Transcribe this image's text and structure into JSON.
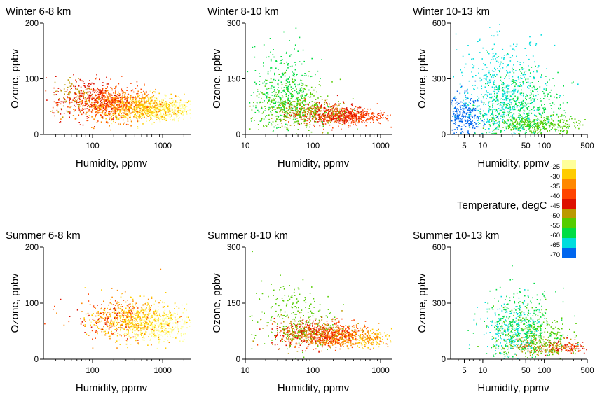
{
  "legend": {
    "title": "Temperature, degC",
    "labels": [
      "-25",
      "-30",
      "-35",
      "-40",
      "-45",
      "-50",
      "-55",
      "-60",
      "-65",
      "-70"
    ],
    "colors": [
      "#ffff99",
      "#ffcc00",
      "#ff8800",
      "#ff4400",
      "#dd1100",
      "#bb9900",
      "#55cc00",
      "#00dd44",
      "#00dddd",
      "#0066ee"
    ]
  },
  "chart_data": [
    {
      "type": "scatter",
      "title": "Winter 6-8 km",
      "xlabel": "Humidity, ppmv",
      "ylabel": "Ozone, ppbv",
      "xscale": "log",
      "xlim": [
        20,
        2500
      ],
      "ylim": [
        0,
        200
      ],
      "xticks": [
        100,
        1000
      ],
      "xticklabels": [
        "100",
        "1000"
      ],
      "yticks": [
        0,
        100,
        200
      ],
      "yticklabels": [
        "0",
        "100",
        "200"
      ],
      "series": [
        {
          "temperature": "-25",
          "center_x": 900,
          "center_y": 45,
          "spread_x": 0.3,
          "spread_y": 10,
          "count": 450
        },
        {
          "temperature": "-30",
          "center_x": 500,
          "center_y": 48,
          "spread_x": 0.3,
          "spread_y": 12,
          "count": 420
        },
        {
          "temperature": "-35",
          "center_x": 250,
          "center_y": 52,
          "spread_x": 0.3,
          "spread_y": 14,
          "count": 380
        },
        {
          "temperature": "-40",
          "center_x": 150,
          "center_y": 58,
          "spread_x": 0.28,
          "spread_y": 16,
          "count": 330
        },
        {
          "temperature": "-45",
          "center_x": 90,
          "center_y": 65,
          "spread_x": 0.25,
          "spread_y": 20,
          "count": 200
        },
        {
          "temperature": "-50",
          "center_x": 60,
          "center_y": 70,
          "spread_x": 0.2,
          "spread_y": 18,
          "count": 80
        }
      ]
    },
    {
      "type": "scatter",
      "title": "Winter 8-10 km",
      "xlabel": "Humidity, ppmv",
      "ylabel": "Ozone, ppbv",
      "xscale": "log",
      "xlim": [
        10,
        1500
      ],
      "ylim": [
        0,
        300
      ],
      "xticks": [
        10,
        100,
        1000
      ],
      "xticklabels": [
        "10",
        "100",
        "1000"
      ],
      "yticks": [
        0,
        150,
        300
      ],
      "yticklabels": [
        "0",
        "150",
        "300"
      ],
      "series": [
        {
          "temperature": "-40",
          "center_x": 300,
          "center_y": 50,
          "spread_x": 0.3,
          "spread_y": 12,
          "count": 380
        },
        {
          "temperature": "-45",
          "center_x": 180,
          "center_y": 55,
          "spread_x": 0.3,
          "spread_y": 14,
          "count": 280
        },
        {
          "temperature": "-50",
          "center_x": 90,
          "center_y": 60,
          "spread_x": 0.3,
          "spread_y": 18,
          "count": 220
        },
        {
          "temperature": "-55",
          "center_x": 50,
          "center_y": 75,
          "spread_x": 0.3,
          "spread_y": 35,
          "count": 360
        },
        {
          "temperature": "-60",
          "center_x": 35,
          "center_y": 120,
          "spread_x": 0.25,
          "spread_y": 60,
          "count": 300
        }
      ]
    },
    {
      "type": "scatter",
      "title": "Winter 10-13 km",
      "xlabel": "Humidity, ppmv",
      "ylabel": "Ozone, ppbv",
      "xscale": "log",
      "xlim": [
        3,
        500
      ],
      "ylim": [
        0,
        600
      ],
      "xticks": [
        5,
        10,
        50,
        100,
        500
      ],
      "xticklabels": [
        "5",
        "10",
        "50",
        "100",
        "500"
      ],
      "yticks": [
        0,
        300,
        600
      ],
      "yticklabels": [
        "0",
        "300",
        "600"
      ],
      "series": [
        {
          "temperature": "-55",
          "center_x": 80,
          "center_y": 50,
          "spread_x": 0.35,
          "spread_y": 25,
          "count": 320
        },
        {
          "temperature": "-60",
          "center_x": 40,
          "center_y": 130,
          "spread_x": 0.35,
          "spread_y": 110,
          "count": 520
        },
        {
          "temperature": "-65",
          "center_x": 20,
          "center_y": 220,
          "spread_x": 0.35,
          "spread_y": 150,
          "count": 520
        },
        {
          "temperature": "-70",
          "center_x": 5,
          "center_y": 90,
          "spread_x": 0.15,
          "spread_y": 60,
          "count": 260
        }
      ]
    },
    {
      "type": "scatter",
      "title": "Summer 6-8 km",
      "xlabel": "Humidity, ppmv",
      "ylabel": "Ozone, ppbv",
      "xscale": "log",
      "xlim": [
        20,
        2500
      ],
      "ylim": [
        0,
        200
      ],
      "xticks": [
        100,
        1000
      ],
      "xticklabels": [
        "100",
        "1000"
      ],
      "yticks": [
        0,
        100,
        200
      ],
      "yticklabels": [
        "0",
        "100",
        "200"
      ],
      "series": [
        {
          "temperature": "-25",
          "center_x": 800,
          "center_y": 62,
          "spread_x": 0.3,
          "spread_y": 15,
          "count": 420
        },
        {
          "temperature": "-30",
          "center_x": 400,
          "center_y": 70,
          "spread_x": 0.3,
          "spread_y": 18,
          "count": 380
        },
        {
          "temperature": "-35",
          "center_x": 250,
          "center_y": 75,
          "spread_x": 0.3,
          "spread_y": 20,
          "count": 160
        },
        {
          "temperature": "-40",
          "center_x": 200,
          "center_y": 70,
          "spread_x": 0.35,
          "spread_y": 18,
          "count": 80
        },
        {
          "temperature": "-45",
          "center_x": 150,
          "center_y": 70,
          "spread_x": 0.3,
          "spread_y": 16,
          "count": 40
        }
      ]
    },
    {
      "type": "scatter",
      "title": "Summer 8-10 km",
      "xlabel": "Humidity, ppmv",
      "ylabel": "Ozone, ppbv",
      "xscale": "log",
      "xlim": [
        10,
        1500
      ],
      "ylim": [
        0,
        300
      ],
      "xticks": [
        10,
        100,
        1000
      ],
      "xticklabels": [
        "10",
        "100",
        "1000"
      ],
      "yticks": [
        0,
        150,
        300
      ],
      "yticklabels": [
        "0",
        "150",
        "300"
      ],
      "series": [
        {
          "temperature": "-30",
          "center_x": 450,
          "center_y": 55,
          "spread_x": 0.25,
          "spread_y": 12,
          "count": 150
        },
        {
          "temperature": "-35",
          "center_x": 250,
          "center_y": 60,
          "spread_x": 0.3,
          "spread_y": 15,
          "count": 300
        },
        {
          "temperature": "-40",
          "center_x": 150,
          "center_y": 65,
          "spread_x": 0.3,
          "spread_y": 18,
          "count": 320
        },
        {
          "temperature": "-45",
          "center_x": 100,
          "center_y": 70,
          "spread_x": 0.3,
          "spread_y": 20,
          "count": 200
        },
        {
          "temperature": "-50",
          "center_x": 90,
          "center_y": 75,
          "spread_x": 0.3,
          "spread_y": 20,
          "count": 180
        },
        {
          "temperature": "-55",
          "center_x": 50,
          "center_y": 110,
          "spread_x": 0.3,
          "spread_y": 50,
          "count": 220
        }
      ]
    },
    {
      "type": "scatter",
      "title": "Summer 10-13 km",
      "xlabel": "Humidity, ppmv",
      "ylabel": "Ozone, ppbv",
      "xscale": "log",
      "xlim": [
        3,
        500
      ],
      "ylim": [
        0,
        600
      ],
      "xticks": [
        5,
        10,
        50,
        100,
        500
      ],
      "xticklabels": [
        "5",
        "10",
        "50",
        "100",
        "500"
      ],
      "yticks": [
        0,
        300,
        600
      ],
      "yticklabels": [
        "0",
        "300",
        "600"
      ],
      "series": [
        {
          "temperature": "-40",
          "center_x": 200,
          "center_y": 60,
          "spread_x": 0.2,
          "spread_y": 15,
          "count": 60
        },
        {
          "temperature": "-45",
          "center_x": 150,
          "center_y": 65,
          "spread_x": 0.3,
          "spread_y": 20,
          "count": 80
        },
        {
          "temperature": "-50",
          "center_x": 100,
          "center_y": 70,
          "spread_x": 0.3,
          "spread_y": 25,
          "count": 160
        },
        {
          "temperature": "-55",
          "center_x": 60,
          "center_y": 130,
          "spread_x": 0.3,
          "spread_y": 70,
          "count": 300
        },
        {
          "temperature": "-60",
          "center_x": 40,
          "center_y": 170,
          "spread_x": 0.3,
          "spread_y": 100,
          "count": 320
        },
        {
          "temperature": "-65",
          "center_x": 30,
          "center_y": 150,
          "spread_x": 0.25,
          "spread_y": 80,
          "count": 200
        }
      ]
    }
  ]
}
